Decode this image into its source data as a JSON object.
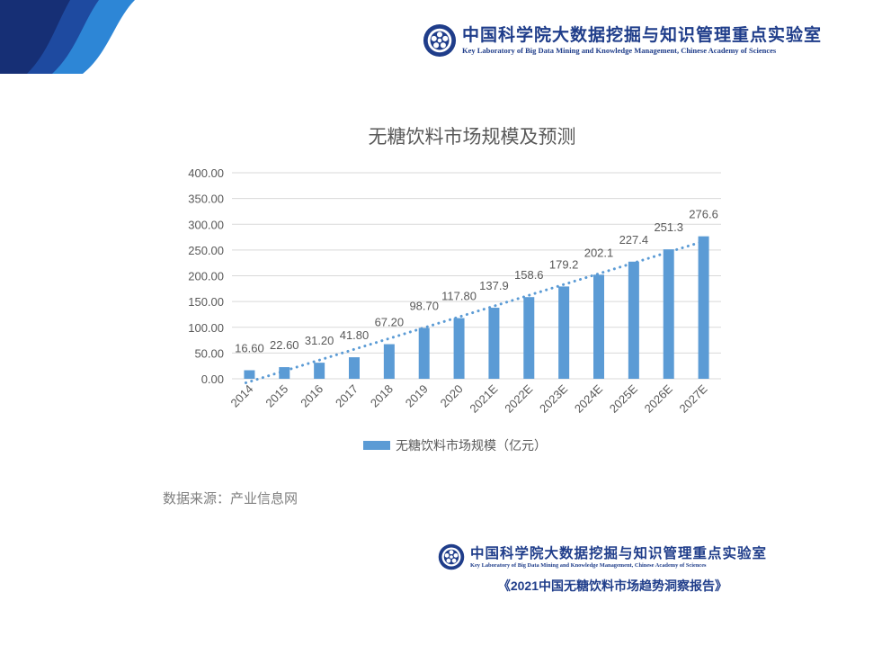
{
  "header": {
    "org_cn": "中国科学院大数据挖掘与知识管理重点实验室",
    "org_en": "Key Laboratory of Big Data Mining and Knowledge Management, Chinese Academy of Sciences"
  },
  "chart_data": {
    "type": "bar",
    "title": "无糖饮料市场规模及预测",
    "categories": [
      "2014",
      "2015",
      "2016",
      "2017",
      "2018",
      "2019",
      "2020",
      "2021E",
      "2022E",
      "2023E",
      "2024E",
      "2025E",
      "2026E",
      "2027E"
    ],
    "series": [
      {
        "name": "无糖饮料市场规模（亿元）",
        "values": [
          16.6,
          22.6,
          31.2,
          41.8,
          67.2,
          98.7,
          117.8,
          137.9,
          158.6,
          179.2,
          202.1,
          227.4,
          251.3,
          276.6
        ],
        "data_labels": [
          "16.60",
          "22.60",
          "31.20",
          "41.80",
          "67.20",
          "98.70",
          "117.80",
          "137.9",
          "158.6",
          "179.2",
          "202.1",
          "227.4",
          "251.3",
          "276.6"
        ],
        "color": "#5b9bd5"
      }
    ],
    "trendline": {
      "type": "linear",
      "style": "dotted",
      "color": "#5b9bd5"
    },
    "ylim": [
      0,
      400
    ],
    "yticks": [
      "0.00",
      "50.00",
      "100.00",
      "150.00",
      "200.00",
      "250.00",
      "300.00",
      "350.00",
      "400.00"
    ],
    "xlabel": "",
    "ylabel": "",
    "grid": true,
    "legend": "bottom"
  },
  "source": "数据来源：产业信息网",
  "report_title": "《2021中国无糖饮料市场趋势洞察报告》",
  "colors": {
    "brand": "#1f3d8a",
    "accent": "#2f6fc4",
    "bar": "#5b9bd5"
  }
}
